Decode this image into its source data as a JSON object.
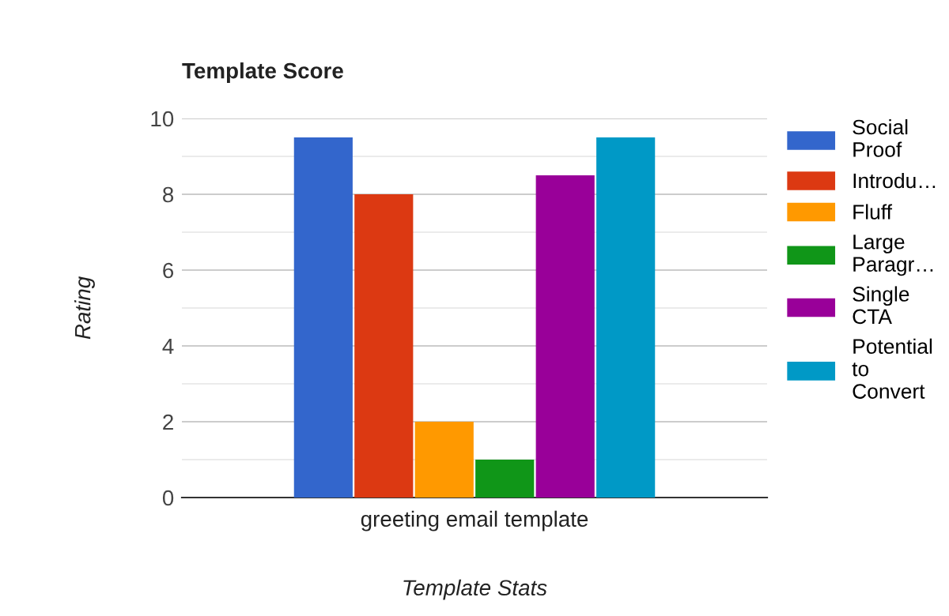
{
  "chart_data": {
    "type": "bar",
    "title": "Template Score",
    "xlabel": "Template Stats",
    "ylabel": "Rating",
    "categories": [
      "greeting email template"
    ],
    "series": [
      {
        "name": "Social\nProof",
        "color": "#3366cc",
        "values": [
          9.5
        ]
      },
      {
        "name": "Introdu…",
        "color": "#dc3912",
        "values": [
          8
        ]
      },
      {
        "name": "Fluff",
        "color": "#ff9900",
        "values": [
          2
        ]
      },
      {
        "name": "Large\nParagr…",
        "color": "#109618",
        "values": [
          1
        ]
      },
      {
        "name": "Single\nCTA",
        "color": "#990099",
        "values": [
          8.5
        ]
      },
      {
        "name": "Potential\nto\nConvert",
        "color": "#0099c6",
        "values": [
          9.5
        ]
      }
    ],
    "ylim": [
      0,
      10
    ],
    "yticks": [
      0,
      {
        "value": 1,
        "label": null
      },
      2,
      {
        "value": 3,
        "label": null
      },
      4,
      {
        "value": 5,
        "label": null
      },
      6,
      {
        "value": 7,
        "label": null
      },
      8,
      {
        "value": 9,
        "label": null
      },
      10
    ],
    "grid": "y",
    "legend": "right"
  }
}
